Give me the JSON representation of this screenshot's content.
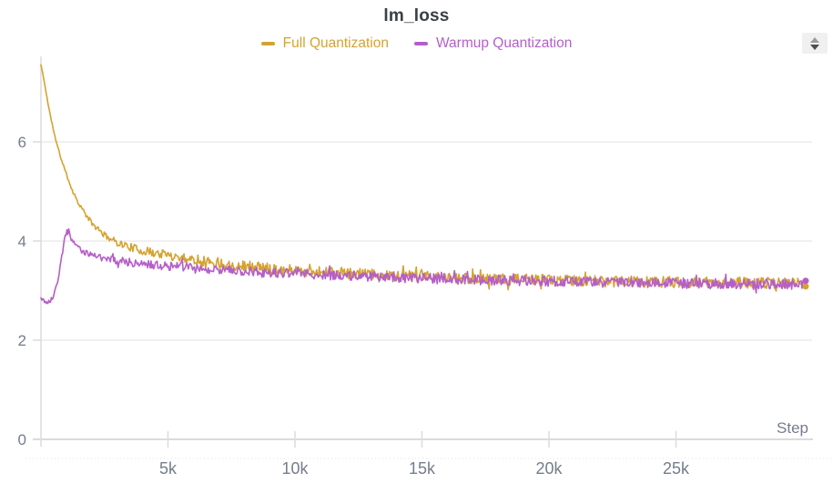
{
  "panel": {
    "title": "lm_loss"
  },
  "icons": {
    "top_right": "up-down-stepper"
  },
  "chart_data": {
    "type": "line",
    "title": "lm_loss",
    "xlabel": "Step",
    "ylabel": "",
    "xlim": [
      0,
      30000
    ],
    "ylim": [
      0,
      7.76
    ],
    "grid": "horizontal",
    "legend_position": "top-center",
    "x_ticks": [
      {
        "value": 5000,
        "label": "5k"
      },
      {
        "value": 10000,
        "label": "10k"
      },
      {
        "value": 15000,
        "label": "15k"
      },
      {
        "value": 20000,
        "label": "20k"
      },
      {
        "value": 25000,
        "label": "25k"
      }
    ],
    "y_ticks": [
      {
        "value": 0,
        "label": "0"
      },
      {
        "value": 2,
        "label": "2"
      },
      {
        "value": 4,
        "label": "4"
      },
      {
        "value": 6,
        "label": "6"
      }
    ],
    "noise_seed": 11,
    "points_per_series": 880,
    "series": [
      {
        "name": "Full Quantization",
        "color": "#d5a230",
        "end_dot": true,
        "trend": [
          [
            0,
            7.55
          ],
          [
            100,
            7.3
          ],
          [
            250,
            6.85
          ],
          [
            400,
            6.45
          ],
          [
            600,
            6.0
          ],
          [
            800,
            5.65
          ],
          [
            1000,
            5.35
          ],
          [
            1250,
            5.0
          ],
          [
            1500,
            4.75
          ],
          [
            1800,
            4.5
          ],
          [
            2100,
            4.3
          ],
          [
            2500,
            4.12
          ],
          [
            3000,
            3.97
          ],
          [
            3500,
            3.88
          ],
          [
            4000,
            3.8
          ],
          [
            4500,
            3.76
          ],
          [
            5000,
            3.72
          ],
          [
            6000,
            3.63
          ],
          [
            7000,
            3.56
          ],
          [
            8000,
            3.5
          ],
          [
            9000,
            3.45
          ],
          [
            10000,
            3.41
          ],
          [
            11000,
            3.38
          ],
          [
            12000,
            3.35
          ],
          [
            13500,
            3.31
          ],
          [
            15000,
            3.28
          ],
          [
            17000,
            3.25
          ],
          [
            19000,
            3.22
          ],
          [
            21000,
            3.2
          ],
          [
            23000,
            3.18
          ],
          [
            25000,
            3.17
          ],
          [
            27000,
            3.16
          ],
          [
            29000,
            3.15
          ],
          [
            30000,
            3.15
          ]
        ],
        "noise": [
          [
            0,
            0.015
          ],
          [
            800,
            0.025
          ],
          [
            1500,
            0.04
          ],
          [
            2500,
            0.06
          ],
          [
            3500,
            0.08
          ],
          [
            5000,
            0.1
          ],
          [
            7000,
            0.11
          ],
          [
            30000,
            0.115
          ]
        ]
      },
      {
        "name": "Warmup Quantization",
        "color": "#b55ec9",
        "end_dot": true,
        "trend": [
          [
            0,
            2.85
          ],
          [
            150,
            2.78
          ],
          [
            300,
            2.76
          ],
          [
            450,
            2.85
          ],
          [
            600,
            3.05
          ],
          [
            750,
            3.45
          ],
          [
            900,
            3.95
          ],
          [
            1000,
            4.18
          ],
          [
            1080,
            4.22
          ],
          [
            1200,
            4.05
          ],
          [
            1350,
            3.92
          ],
          [
            1500,
            3.84
          ],
          [
            1800,
            3.76
          ],
          [
            2100,
            3.7
          ],
          [
            2500,
            3.65
          ],
          [
            3000,
            3.61
          ],
          [
            3500,
            3.57
          ],
          [
            4000,
            3.54
          ],
          [
            5000,
            3.49
          ],
          [
            6000,
            3.45
          ],
          [
            7000,
            3.42
          ],
          [
            8000,
            3.39
          ],
          [
            9000,
            3.36
          ],
          [
            10000,
            3.34
          ],
          [
            11000,
            3.32
          ],
          [
            12000,
            3.3
          ],
          [
            13500,
            3.27
          ],
          [
            15000,
            3.25
          ],
          [
            17000,
            3.22
          ],
          [
            19000,
            3.2
          ],
          [
            21000,
            3.18
          ],
          [
            23000,
            3.16
          ],
          [
            25000,
            3.15
          ],
          [
            27000,
            3.14
          ],
          [
            29000,
            3.13
          ],
          [
            30000,
            3.13
          ]
        ],
        "noise": [
          [
            0,
            0.035
          ],
          [
            600,
            0.045
          ],
          [
            1200,
            0.055
          ],
          [
            2500,
            0.07
          ],
          [
            4000,
            0.085
          ],
          [
            6000,
            0.1
          ],
          [
            30000,
            0.105
          ]
        ]
      }
    ]
  },
  "style": {
    "grid_color": "#ececec",
    "axis_color": "#dbdbdb",
    "tick_label_color": "#757d8c",
    "title_color": "#3a3f46"
  }
}
